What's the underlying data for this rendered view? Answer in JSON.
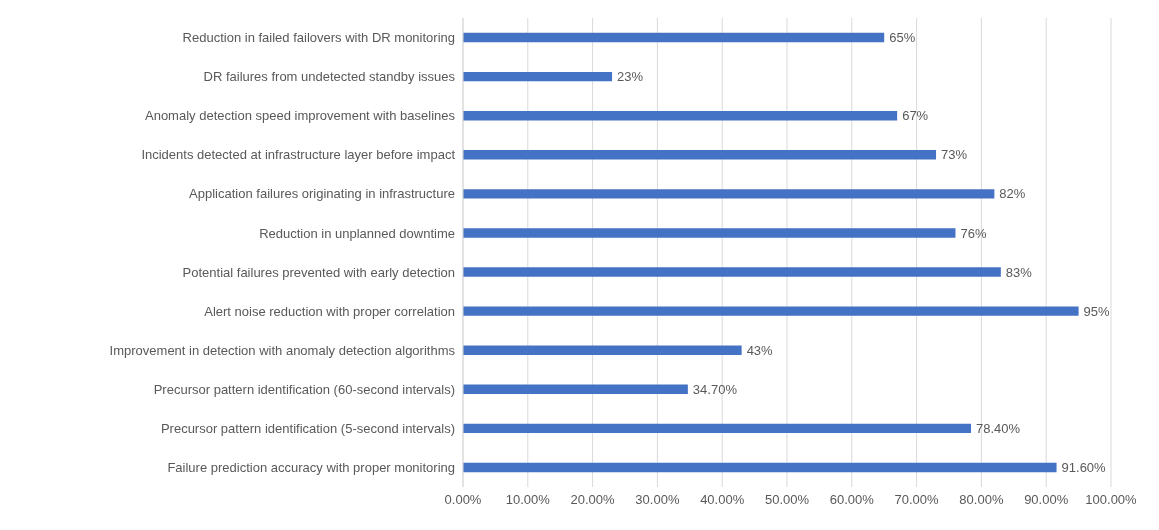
{
  "chart_data": {
    "type": "bar",
    "orientation": "horizontal",
    "categories": [
      "Reduction in failed failovers with DR monitoring",
      "DR failures from undetected standby issues",
      "Anomaly detection speed improvement with baselines",
      "Incidents detected at infrastructure layer before impact",
      "Application failures originating in infrastructure",
      "Reduction in unplanned downtime",
      "Potential failures prevented with early detection",
      "Alert noise reduction with proper correlation",
      "Improvement in detection with anomaly detection algorithms",
      "Precursor pattern identification (60-second intervals)",
      "Precursor pattern identification (5-second intervals)",
      "Failure prediction accuracy with proper monitoring"
    ],
    "values": [
      65,
      23,
      67,
      73,
      82,
      76,
      83,
      95,
      43,
      34.7,
      78.4,
      91.6
    ],
    "value_labels": [
      "65%",
      "23%",
      "67%",
      "73%",
      "82%",
      "76%",
      "83%",
      "95%",
      "43%",
      "34.70%",
      "78.40%",
      "91.60%"
    ],
    "color": "#4472c4",
    "xlim": [
      0,
      100
    ],
    "xticks": [
      {
        "value": 0,
        "label": "0.00%"
      },
      {
        "value": 10,
        "label": "10.00%"
      },
      {
        "value": 20,
        "label": "20.00%"
      },
      {
        "value": 30,
        "label": "30.00%"
      },
      {
        "value": 40,
        "label": "40.00%"
      },
      {
        "value": 50,
        "label": "50.00%"
      },
      {
        "value": 60,
        "label": "60.00%"
      },
      {
        "value": 70,
        "label": "70.00%"
      },
      {
        "value": 80,
        "label": "80.00%"
      },
      {
        "value": 90,
        "label": "90.00%"
      },
      {
        "value": 100,
        "label": "100.00%"
      }
    ],
    "grid": "x",
    "legend": false
  }
}
